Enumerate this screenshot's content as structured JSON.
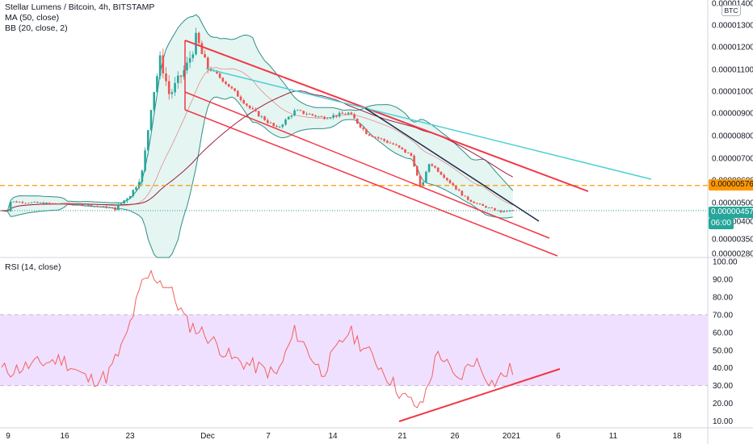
{
  "legend": {
    "title": "Stellar Lumens / Bitcoin, 4h, BITSTAMP",
    "ma": "MA (50, close)",
    "bb": "BB (20, close, 2)",
    "rsi": "RSI (14, close)"
  },
  "currency_badge": "BTC",
  "price_tags": {
    "resistance": "0.00000576",
    "last": "0.00000457",
    "countdown": "06:00"
  },
  "colors": {
    "bull": "#26a69a",
    "bear": "#ef5350",
    "channel": "#f23645",
    "cyan_line": "#4dd0d5",
    "dark_line": "#1e2a4a",
    "ma": "#e57373",
    "bb": "#2f8f86",
    "bb_fill": "#dff2ef",
    "rsi": "#f26060",
    "rsi_band": "#f0e0ff",
    "dashed_level": "#ff9800",
    "last_price": "#26a69a"
  },
  "chart_data": [
    {
      "type": "candlestick",
      "pair": "XLM/BTC",
      "interval": "4h",
      "exchange": "BITSTAMP",
      "x_ticks": [
        "9",
        "16",
        "23",
        "Dec",
        "7",
        "14",
        "21",
        "26",
        "2021",
        "6",
        "11",
        "18"
      ],
      "y_ticks": [
        "0.00000280",
        "0.00000350",
        "0.00000400",
        "0.00000500",
        "0.00000600",
        "0.00000700",
        "0.00000800",
        "0.00000900",
        "0.00001000",
        "0.00001100",
        "0.00001200",
        "0.00001300",
        "0.00001400"
      ],
      "y_range": [
        2.6e-06,
        1.42e-05
      ],
      "close_path": [
        {
          "d": "Nov 7",
          "v": 5.05e-06
        },
        {
          "d": "Nov 12",
          "v": 4.95e-06
        },
        {
          "d": "Nov 16",
          "v": 4.85e-06
        },
        {
          "d": "Nov 19",
          "v": 4.7e-06
        },
        {
          "d": "Nov 21",
          "v": 5.55e-06
        },
        {
          "d": "Nov 22",
          "v": 6.4e-06
        },
        {
          "d": "Nov 23",
          "v": 9.5e-06
        },
        {
          "d": "Nov 24",
          "v": 1.15e-05
        },
        {
          "d": "Nov 25",
          "v": 9.8e-06
        },
        {
          "d": "Nov 27",
          "v": 1.12e-05
        },
        {
          "d": "Nov 28",
          "v": 1.24e-05
        },
        {
          "d": "Nov 29",
          "v": 1.12e-05
        },
        {
          "d": "Dec 1",
          "v": 1.05e-05
        },
        {
          "d": "Dec 4",
          "v": 9.2e-06
        },
        {
          "d": "Dec 7",
          "v": 8.3e-06
        },
        {
          "d": "Dec 9",
          "v": 9.1e-06
        },
        {
          "d": "Dec 12",
          "v": 8.8e-06
        },
        {
          "d": "Dec 15",
          "v": 9e-06
        },
        {
          "d": "Dec 17",
          "v": 8.1e-06
        },
        {
          "d": "Dec 20",
          "v": 7.6e-06
        },
        {
          "d": "Dec 22",
          "v": 7.1e-06
        },
        {
          "d": "Dec 23",
          "v": 5.6e-06
        },
        {
          "d": "Dec 24",
          "v": 6.8e-06
        },
        {
          "d": "Dec 26",
          "v": 6e-06
        },
        {
          "d": "Dec 28",
          "v": 5.2e-06
        },
        {
          "d": "Dec 30",
          "v": 4.8e-06
        },
        {
          "d": "Jan 1",
          "v": 4.5e-06
        },
        {
          "d": "Jan 2",
          "v": 4.57e-06
        }
      ],
      "levels": {
        "resistance": 5.76e-06,
        "last": 4.57e-06
      }
    },
    {
      "type": "line",
      "name": "RSI (14, close)",
      "y_ticks": [
        "10.00",
        "20.00",
        "30.00",
        "40.00",
        "50.00",
        "60.00",
        "70.00",
        "80.00",
        "90.00",
        "100.00"
      ],
      "y_range": [
        7,
        101
      ],
      "band": [
        30,
        70
      ],
      "values_path": [
        {
          "d": "Nov 7",
          "v": 38
        },
        {
          "d": "Nov 10",
          "v": 42
        },
        {
          "d": "Nov 13",
          "v": 45
        },
        {
          "d": "Nov 16",
          "v": 33
        },
        {
          "d": "Nov 18",
          "v": 35
        },
        {
          "d": "Nov 20",
          "v": 55
        },
        {
          "d": "Nov 22",
          "v": 88
        },
        {
          "d": "Nov 23",
          "v": 93
        },
        {
          "d": "Nov 25",
          "v": 85
        },
        {
          "d": "Nov 27",
          "v": 65
        },
        {
          "d": "Nov 29",
          "v": 59
        },
        {
          "d": "Dec 2",
          "v": 45
        },
        {
          "d": "Dec 5",
          "v": 40
        },
        {
          "d": "Dec 7",
          "v": 36
        },
        {
          "d": "Dec 9",
          "v": 61
        },
        {
          "d": "Dec 12",
          "v": 37
        },
        {
          "d": "Dec 15",
          "v": 61
        },
        {
          "d": "Dec 18",
          "v": 44
        },
        {
          "d": "Dec 21",
          "v": 24
        },
        {
          "d": "Dec 23",
          "v": 17
        },
        {
          "d": "Dec 25",
          "v": 50
        },
        {
          "d": "Dec 27",
          "v": 32
        },
        {
          "d": "Dec 29",
          "v": 45
        },
        {
          "d": "Dec 31",
          "v": 31
        },
        {
          "d": "Jan 2",
          "v": 39
        }
      ]
    }
  ]
}
